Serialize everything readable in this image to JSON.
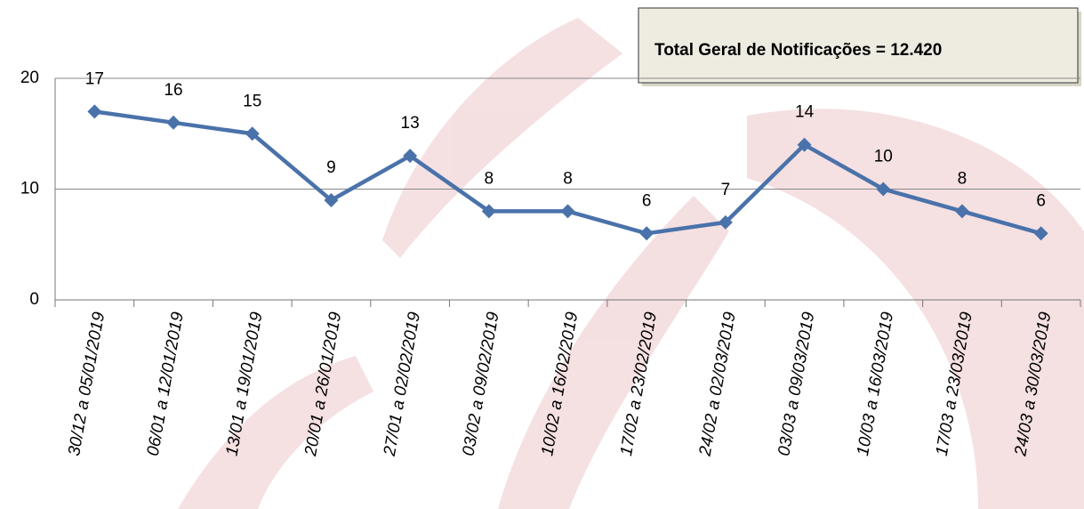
{
  "chart_data": {
    "type": "line",
    "annotation": "Total Geral de Notificações = 12.420",
    "categories": [
      "30/12 a 05/01/2019",
      "06/01 a 12/01/2019",
      "13/01 a 19/01/2019",
      "20/01 a 26/01/2019",
      "27/01 a 02/02/2019",
      "03/02 a 09/02/2019",
      "10/02 a 16/02/2019",
      "17/02 a 23/02/2019",
      "24/02 a 02/03/2019",
      "03/03 a 09/03/2019",
      "10/03 a 16/03/2019",
      "17/03 a 23/03/2019",
      "24/03 a 30/03/2019"
    ],
    "values": [
      17,
      16,
      15,
      9,
      13,
      8,
      8,
      6,
      7,
      14,
      10,
      8,
      6
    ],
    "color": "#4a72aa",
    "ylim": [
      0,
      20
    ],
    "yticks": [
      0,
      10,
      20
    ],
    "grid": true
  }
}
